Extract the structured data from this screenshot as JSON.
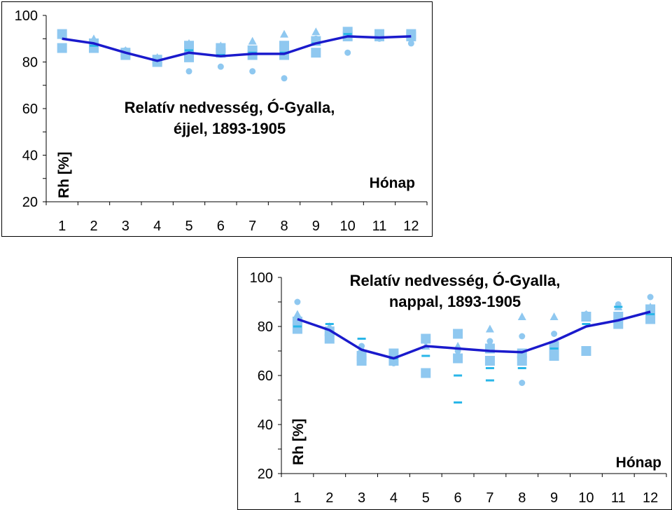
{
  "colors": {
    "line": "#1a1acc",
    "marker": "#8fc8f0",
    "dash": "#29b6e8"
  },
  "chart_data": [
    {
      "type": "line",
      "title_lines": [
        "Relatív nedvesség, Ó-Gyalla,",
        "éjjel, 1893-1905"
      ],
      "xlabel": "Hónap",
      "ylabel": "Rh [%]",
      "x_ticks": [
        "1",
        "2",
        "3",
        "4",
        "5",
        "6",
        "7",
        "8",
        "9",
        "10",
        "11",
        "12"
      ],
      "y_ticks": [
        "20",
        "40",
        "60",
        "80",
        "100"
      ],
      "ylim": [
        20,
        100
      ],
      "series": [
        {
          "marker": "line",
          "values": [
            90,
            88,
            84,
            80.5,
            84,
            82.5,
            83.5,
            83.5,
            88,
            91,
            90.5,
            91
          ]
        }
      ],
      "scatter": [
        {
          "marker": "square",
          "points": [
            [
              1,
              92
            ],
            [
              1,
              86
            ],
            [
              2,
              88
            ],
            [
              2,
              86
            ],
            [
              3,
              84
            ],
            [
              3,
              83
            ],
            [
              4,
              81
            ],
            [
              4,
              80
            ],
            [
              5,
              87
            ],
            [
              5,
              84
            ],
            [
              5,
              82
            ],
            [
              6,
              86
            ],
            [
              6,
              84
            ],
            [
              7,
              85
            ],
            [
              7,
              83
            ],
            [
              8,
              87
            ],
            [
              8,
              83
            ],
            [
              9,
              89
            ],
            [
              9,
              84
            ],
            [
              10,
              93
            ],
            [
              10,
              91
            ],
            [
              11,
              92
            ],
            [
              11,
              91
            ],
            [
              12,
              92
            ],
            [
              12,
              91
            ]
          ]
        },
        {
          "marker": "circle",
          "points": [
            [
              1,
              91
            ],
            [
              2,
              88
            ],
            [
              3,
              85
            ],
            [
              4,
              81
            ],
            [
              5,
              76
            ],
            [
              6,
              78
            ],
            [
              7,
              76
            ],
            [
              8,
              73
            ],
            [
              9,
              90
            ],
            [
              10,
              84
            ],
            [
              11,
              90
            ],
            [
              12,
              88
            ]
          ]
        },
        {
          "marker": "triangle",
          "points": [
            [
              1,
              92
            ],
            [
              2,
              90
            ],
            [
              3,
              85
            ],
            [
              4,
              82
            ],
            [
              5,
              88
            ],
            [
              6,
              87
            ],
            [
              7,
              89
            ],
            [
              8,
              92
            ],
            [
              9,
              93
            ],
            [
              10,
              92
            ],
            [
              11,
              92
            ],
            [
              12,
              92
            ]
          ]
        },
        {
          "marker": "dash",
          "points": [
            [
              2,
              87
            ],
            [
              5,
              85
            ],
            [
              6,
              83
            ],
            [
              7,
              84
            ],
            [
              8,
              84
            ],
            [
              9,
              88
            ],
            [
              10,
              92
            ]
          ]
        }
      ]
    },
    {
      "type": "line",
      "title_lines": [
        "Relatív nedvesség, Ó-Gyalla,",
        "nappal, 1893-1905"
      ],
      "xlabel": "Hónap",
      "ylabel": "Rh [%]",
      "x_ticks": [
        "1",
        "2",
        "3",
        "4",
        "5",
        "6",
        "7",
        "8",
        "9",
        "10",
        "11",
        "12"
      ],
      "y_ticks": [
        "20",
        "40",
        "60",
        "80",
        "100"
      ],
      "ylim": [
        20,
        100
      ],
      "series": [
        {
          "marker": "line",
          "values": [
            83,
            78.5,
            70.5,
            67,
            72,
            71,
            70,
            69.5,
            74,
            80,
            82.5,
            86
          ]
        }
      ],
      "scatter": [
        {
          "marker": "square",
          "points": [
            [
              1,
              82
            ],
            [
              1,
              79
            ],
            [
              2,
              78
            ],
            [
              2,
              75
            ],
            [
              3,
              68
            ],
            [
              3,
              66
            ],
            [
              4,
              69
            ],
            [
              4,
              66
            ],
            [
              5,
              75
            ],
            [
              5,
              61
            ],
            [
              6,
              77
            ],
            [
              6,
              67
            ],
            [
              7,
              71
            ],
            [
              7,
              66
            ],
            [
              8,
              69
            ],
            [
              8,
              66
            ],
            [
              9,
              72
            ],
            [
              9,
              68
            ],
            [
              10,
              84
            ],
            [
              10,
              70
            ],
            [
              11,
              84
            ],
            [
              11,
              81
            ],
            [
              12,
              87
            ],
            [
              12,
              83
            ]
          ]
        },
        {
          "marker": "circle",
          "points": [
            [
              1,
              90
            ],
            [
              1,
              84
            ],
            [
              2,
              77
            ],
            [
              3,
              72
            ],
            [
              4,
              65
            ],
            [
              5,
              74
            ],
            [
              6,
              70
            ],
            [
              7,
              74
            ],
            [
              8,
              76
            ],
            [
              8,
              57
            ],
            [
              9,
              77
            ],
            [
              10,
              85
            ],
            [
              11,
              89
            ],
            [
              12,
              92
            ]
          ]
        },
        {
          "marker": "triangle",
          "points": [
            [
              1,
              85
            ],
            [
              2,
              80
            ],
            [
              3,
              71
            ],
            [
              4,
              69
            ],
            [
              5,
              72
            ],
            [
              6,
              72
            ],
            [
              7,
              79
            ],
            [
              8,
              84
            ],
            [
              9,
              84
            ],
            [
              10,
              85
            ],
            [
              11,
              88
            ],
            [
              12,
              88
            ]
          ]
        },
        {
          "marker": "dash",
          "points": [
            [
              1,
              80
            ],
            [
              2,
              81
            ],
            [
              3,
              75
            ],
            [
              4,
              67
            ],
            [
              5,
              68
            ],
            [
              6,
              60
            ],
            [
              6,
              49
            ],
            [
              7,
              63
            ],
            [
              7,
              58
            ],
            [
              8,
              63
            ],
            [
              9,
              71
            ],
            [
              10,
              81
            ],
            [
              11,
              88
            ],
            [
              12,
              85
            ]
          ]
        }
      ]
    }
  ]
}
